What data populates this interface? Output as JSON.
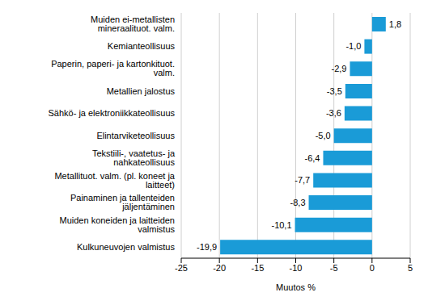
{
  "chart_data": {
    "type": "bar",
    "orientation": "horizontal",
    "x_label": "Muutos %",
    "categories": [
      "Muiden ei-metallisten mineraalituot. valm.",
      "Kemianteollisuus",
      "Paperin, paperi- ja kartonkituot. valm.",
      "Metallien jalostus",
      "Sähkö- ja elektroniikkateollisuus",
      "Elintarviketeollisuus",
      "Tekstiili-, vaatetus- ja nahkateollisuus",
      "Metallituot. valm. (pl. koneet ja laitteet)",
      "Painaminen ja tallenteiden jäljentäminen",
      "Muiden koneiden ja laitteiden valmistus",
      "Kulkuneuvojen valmistus"
    ],
    "values": [
      1.8,
      -1.0,
      -2.9,
      -3.5,
      -3.6,
      -5.0,
      -6.4,
      -7.7,
      -8.3,
      -10.1,
      -19.9
    ],
    "value_labels": [
      "1,8",
      "-1,0",
      "-2,9",
      "-3,5",
      "-3,6",
      "-5,0",
      "-6,4",
      "-7,7",
      "-8,3",
      "-10,1",
      "-19,9"
    ],
    "data_labels": true,
    "color": "#1a9bd7",
    "xlim": [
      -25,
      5
    ],
    "xticks": [
      -25,
      -20,
      -15,
      -10,
      -5,
      0,
      5
    ],
    "grid": true
  }
}
